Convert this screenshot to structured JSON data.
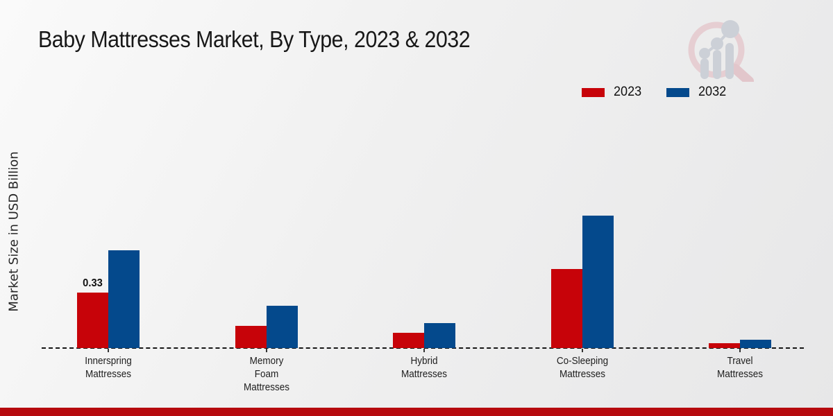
{
  "header": {
    "title": "Baby Mattresses Market, By Type, 2023 & 2032"
  },
  "y_axis": {
    "label": "Market Size in USD Billion"
  },
  "legend": {
    "items": [
      {
        "label": "2023",
        "color": "#c70309"
      },
      {
        "label": "2032",
        "color": "#04498c"
      }
    ]
  },
  "logo": {
    "name": "market-research-magnifier-logo",
    "ring_color": "#e6ced2",
    "bars_color": "#ccd0d7"
  },
  "colors": {
    "series_2023": "#c70309",
    "series_2032": "#04498c",
    "footer_band": "#b60a0e",
    "axis_line": "#151515"
  },
  "chart_data": {
    "type": "bar",
    "title": "Baby Mattresses Market, By Type, 2023 & 2032",
    "ylabel": "Market Size in USD Billion",
    "categories": [
      "Innerspring Mattresses",
      "Memory Foam Mattresses",
      "Hybrid Mattresses",
      "Co-Sleeping Mattresses",
      "Travel Mattresses"
    ],
    "category_label_lines": [
      [
        "Innerspring",
        "Mattresses"
      ],
      [
        "Memory",
        "Foam",
        "Mattresses"
      ],
      [
        "Hybrid",
        "Mattresses"
      ],
      [
        "Co-Sleeping",
        "Mattresses"
      ],
      [
        "Travel",
        "Mattresses"
      ]
    ],
    "series": [
      {
        "name": "2023",
        "color": "#c70309",
        "values": [
          0.33,
          0.13,
          0.09,
          0.47,
          0.03
        ]
      },
      {
        "name": "2032",
        "color": "#04498c",
        "values": [
          0.58,
          0.25,
          0.15,
          0.79,
          0.05
        ]
      }
    ],
    "data_labels": [
      {
        "series_index": 0,
        "category_index": 0,
        "text": "0.33"
      }
    ],
    "ylim": [
      0,
      0.83
    ],
    "grid": false,
    "baseline_style": "dashed",
    "legend_position": "top-right"
  }
}
